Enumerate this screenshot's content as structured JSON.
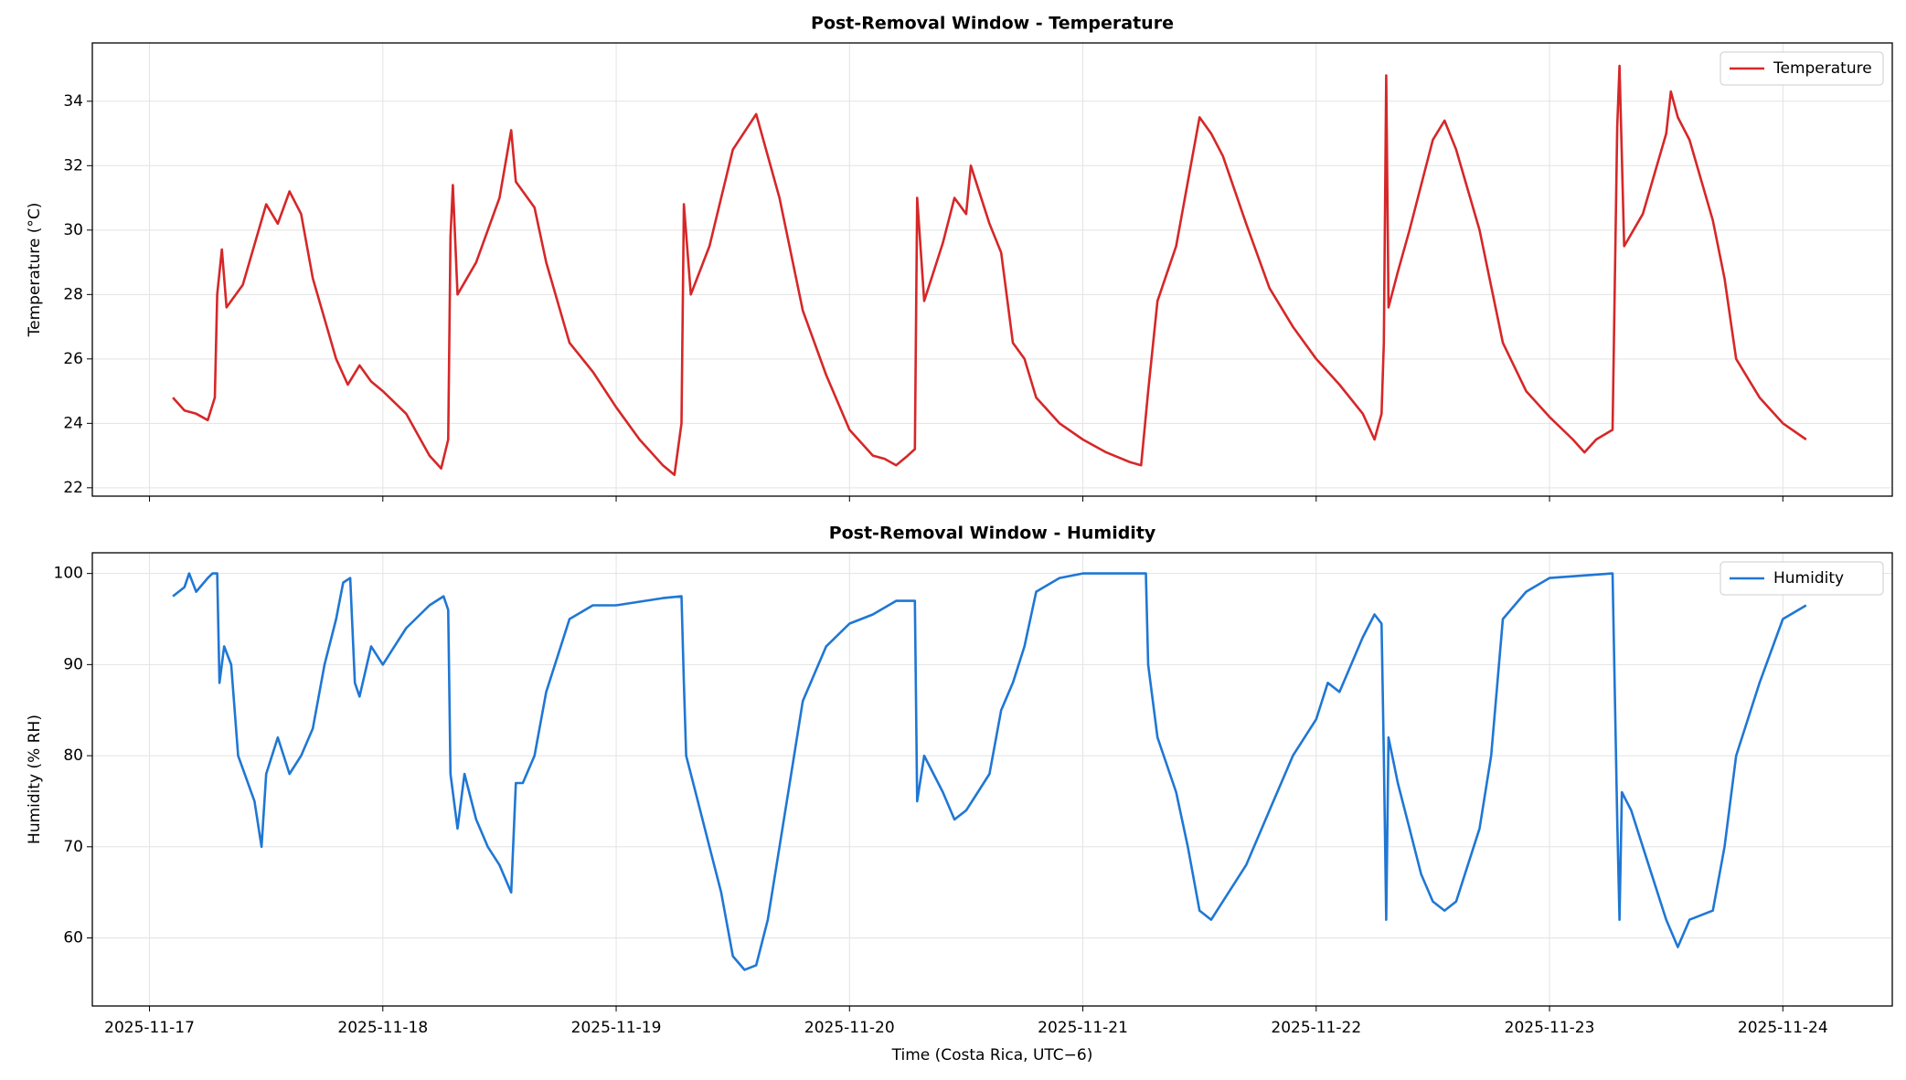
{
  "chart_data": [
    {
      "type": "line",
      "title": "Post-Removal Window - Temperature",
      "ylabel": "Temperature (°C)",
      "xlim": [
        -0.245,
        7.469
      ],
      "xticks": [
        0,
        1,
        2,
        3,
        4,
        5,
        6,
        7
      ],
      "ylim": [
        21.74,
        35.81
      ],
      "yticks": [
        22,
        24,
        26,
        28,
        30,
        32,
        34
      ],
      "grid": true,
      "legend": "upper right",
      "x": [
        0.1,
        0.15,
        0.2,
        0.25,
        0.28,
        0.29,
        0.31,
        0.33,
        0.4,
        0.5,
        0.55,
        0.6,
        0.65,
        0.7,
        0.8,
        0.85,
        0.9,
        0.95,
        1.0,
        1.1,
        1.2,
        1.25,
        1.28,
        1.29,
        1.3,
        1.32,
        1.4,
        1.5,
        1.55,
        1.57,
        1.65,
        1.7,
        1.8,
        1.9,
        2.0,
        2.1,
        2.2,
        2.25,
        2.28,
        2.29,
        2.32,
        2.4,
        2.5,
        2.6,
        2.7,
        2.8,
        2.9,
        3.0,
        3.1,
        3.15,
        3.2,
        3.25,
        3.28,
        3.29,
        3.32,
        3.4,
        3.45,
        3.5,
        3.52,
        3.6,
        3.65,
        3.7,
        3.75,
        3.8,
        3.9,
        4.0,
        4.1,
        4.2,
        4.25,
        4.28,
        4.32,
        4.4,
        4.5,
        4.55,
        4.6,
        4.7,
        4.8,
        4.9,
        5.0,
        5.1,
        5.2,
        5.25,
        5.28,
        5.29,
        5.3,
        5.31,
        5.35,
        5.4,
        5.5,
        5.55,
        5.6,
        5.7,
        5.8,
        5.9,
        6.0,
        6.1,
        6.15,
        6.2,
        6.27,
        6.29,
        6.3,
        6.32,
        6.4,
        6.5,
        6.52,
        6.55,
        6.6,
        6.7,
        6.75,
        6.8,
        6.9,
        7.0,
        7.1
      ],
      "series": [
        {
          "name": "Temperature",
          "color": "#d62728",
          "values": [
            24.8,
            24.4,
            24.3,
            24.1,
            24.8,
            28,
            29.4,
            27.6,
            28.3,
            30.8,
            30.2,
            31.2,
            30.5,
            28.5,
            26,
            25.2,
            25.8,
            25.3,
            25.0,
            24.3,
            23.0,
            22.6,
            23.5,
            29.8,
            31.4,
            28,
            29,
            31,
            33.1,
            31.5,
            30.7,
            29,
            26.5,
            25.6,
            24.5,
            23.5,
            22.7,
            22.4,
            24,
            30.8,
            28,
            29.5,
            32.5,
            33.6,
            31,
            27.5,
            25.5,
            23.8,
            23.0,
            22.9,
            22.7,
            23,
            23.2,
            31,
            27.8,
            29.6,
            31,
            30.5,
            32,
            30.2,
            29.3,
            26.5,
            26,
            24.8,
            24.0,
            23.5,
            23.1,
            22.8,
            22.7,
            25,
            27.8,
            29.5,
            33.5,
            33,
            32.3,
            30.2,
            28.2,
            27,
            26,
            25.2,
            24.3,
            23.5,
            24.3,
            26.5,
            34.8,
            27.6,
            28.7,
            30,
            32.8,
            33.4,
            32.5,
            30,
            26.5,
            25,
            24.2,
            23.5,
            23.1,
            23.5,
            23.8,
            33.2,
            35.1,
            29.5,
            30.5,
            33,
            34.3,
            33.5,
            32.8,
            30.3,
            28.5,
            26,
            24.8,
            24.0,
            23.5
          ]
        }
      ]
    },
    {
      "type": "line",
      "title": "Post-Removal Window - Humidity",
      "ylabel": "Humidity (% RH)",
      "xlabel": "Time (Costa Rica, UTC−6)",
      "xlim": [
        -0.245,
        7.469
      ],
      "xticks": [
        {
          "value": 0,
          "label": "2025-11-17"
        },
        {
          "value": 1,
          "label": "2025-11-18"
        },
        {
          "value": 2,
          "label": "2025-11-19"
        },
        {
          "value": 3,
          "label": "2025-11-20"
        },
        {
          "value": 4,
          "label": "2025-11-21"
        },
        {
          "value": 5,
          "label": "2025-11-22"
        },
        {
          "value": 6,
          "label": "2025-11-23"
        },
        {
          "value": 7,
          "label": "2025-11-24"
        }
      ],
      "ylim": [
        52.53,
        102.27
      ],
      "yticks": [
        60,
        70,
        80,
        90,
        100
      ],
      "grid": true,
      "legend": "upper right",
      "x": [
        0.1,
        0.15,
        0.17,
        0.2,
        0.25,
        0.27,
        0.29,
        0.3,
        0.32,
        0.35,
        0.38,
        0.45,
        0.48,
        0.5,
        0.55,
        0.6,
        0.65,
        0.7,
        0.75,
        0.8,
        0.83,
        0.86,
        0.88,
        0.9,
        0.95,
        1.0,
        1.05,
        1.1,
        1.2,
        1.26,
        1.28,
        1.29,
        1.32,
        1.35,
        1.4,
        1.45,
        1.5,
        1.55,
        1.57,
        1.6,
        1.65,
        1.7,
        1.8,
        1.9,
        2.0,
        2.2,
        2.28,
        2.29,
        2.3,
        2.35,
        2.4,
        2.45,
        2.5,
        2.55,
        2.6,
        2.65,
        2.7,
        2.75,
        2.8,
        2.9,
        3.0,
        3.1,
        3.2,
        3.28,
        3.29,
        3.32,
        3.4,
        3.45,
        3.5,
        3.55,
        3.6,
        3.65,
        3.7,
        3.75,
        3.8,
        3.9,
        4.0,
        4.27,
        4.28,
        4.32,
        4.4,
        4.45,
        4.5,
        4.55,
        4.6,
        4.7,
        4.8,
        4.9,
        5.0,
        5.05,
        5.1,
        5.2,
        5.25,
        5.28,
        5.29,
        5.3,
        5.31,
        5.35,
        5.4,
        5.45,
        5.5,
        5.55,
        5.6,
        5.7,
        5.75,
        5.8,
        5.9,
        6.0,
        6.27,
        6.29,
        6.3,
        6.31,
        6.35,
        6.4,
        6.45,
        6.5,
        6.55,
        6.6,
        6.7,
        6.75,
        6.8,
        6.9,
        7.0,
        7.1
      ],
      "series": [
        {
          "name": "Humidity",
          "color": "#1f77d4",
          "values": [
            97.5,
            98.5,
            100,
            98,
            99.5,
            100,
            100,
            88,
            92,
            90,
            80,
            75,
            70,
            78,
            82,
            78,
            80,
            83,
            90,
            95,
            99,
            99.5,
            88,
            86.5,
            92,
            90,
            92,
            94,
            96.5,
            97.5,
            96,
            78,
            72,
            78,
            73,
            70,
            68,
            65,
            77,
            77,
            80,
            87,
            95,
            96.5,
            96.5,
            97.3,
            97.5,
            88,
            80,
            75,
            70,
            65,
            58,
            56.5,
            57,
            62,
            70,
            78,
            86,
            92,
            94.5,
            95.5,
            97,
            97,
            75,
            80,
            76,
            73,
            74,
            76,
            78,
            85,
            88,
            92,
            98,
            99.5,
            100,
            100,
            90,
            82,
            76,
            70,
            63,
            62,
            64,
            68,
            74,
            80,
            84,
            88,
            87,
            93,
            95.5,
            94.5,
            80,
            62,
            82,
            77,
            72,
            67,
            64,
            63,
            64,
            72,
            80,
            95,
            98,
            99.5,
            100,
            73,
            62,
            76,
            74,
            70,
            66,
            62,
            59,
            62,
            63,
            70,
            80,
            88,
            95,
            96.5
          ]
        }
      ]
    }
  ]
}
